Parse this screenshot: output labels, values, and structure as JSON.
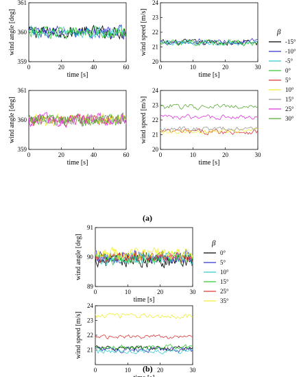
{
  "figure": {
    "label_a": "(a)",
    "label_b": "(b)"
  },
  "legend_a": {
    "title": "β",
    "entries": [
      "-15°",
      "-10°",
      "-5°",
      "0°",
      "5°",
      "10°",
      "15°",
      "25°",
      "30°"
    ],
    "colors": [
      "#000000",
      "#3333cc",
      "#33cccc",
      "#33cc33",
      "#dd3333",
      "#eeee33",
      "#999999",
      "#dd33dd",
      "#55aa33"
    ]
  },
  "legend_b": {
    "title": "β",
    "entries": [
      "0°",
      "5°",
      "10°",
      "15°",
      "25°",
      "35°"
    ],
    "colors": [
      "#000000",
      "#3333cc",
      "#33cccc",
      "#33cc33",
      "#dd3333",
      "#eeee33"
    ]
  },
  "chart_data": [
    {
      "type": "line",
      "panel": "a-top-left",
      "xlabel": "time [s]",
      "ylabel": "wind angle [deg]",
      "xlim": [
        0,
        60
      ],
      "ylim": [
        359,
        361
      ],
      "xticks": [
        0,
        20,
        40,
        60
      ],
      "yticks": [
        359,
        360,
        361
      ],
      "series": [
        {
          "name": "-15°",
          "center": 360.0,
          "amp": 0.28
        },
        {
          "name": "-10°",
          "center": 360.0,
          "amp": 0.28
        },
        {
          "name": "-5°",
          "center": 360.0,
          "amp": 0.25
        },
        {
          "name": "0°",
          "center": 360.0,
          "amp": 0.25
        }
      ]
    },
    {
      "type": "line",
      "panel": "a-top-right",
      "xlabel": "time [s]",
      "ylabel": "wind speed [m/s]",
      "xlim": [
        0,
        30
      ],
      "ylim": [
        20,
        24
      ],
      "xticks": [
        0,
        10,
        20,
        30
      ],
      "yticks": [
        20,
        21,
        22,
        23,
        24
      ],
      "series": [
        {
          "name": "-15°",
          "center": 21.3,
          "amp": 0.28
        },
        {
          "name": "-10°",
          "center": 21.35,
          "amp": 0.28
        },
        {
          "name": "-5°",
          "center": 21.3,
          "amp": 0.28
        },
        {
          "name": "0°",
          "center": 21.25,
          "amp": 0.28
        }
      ]
    },
    {
      "type": "line",
      "panel": "a-bottom-left",
      "xlabel": "time [s]",
      "ylabel": "wind angle [deg]",
      "xlim": [
        0,
        60
      ],
      "ylim": [
        359,
        361
      ],
      "xticks": [
        0,
        20,
        40,
        60
      ],
      "yticks": [
        359,
        360,
        361
      ],
      "series": [
        {
          "name": "5°",
          "center": 360.0,
          "amp": 0.28
        },
        {
          "name": "10°",
          "center": 360.0,
          "amp": 0.25
        },
        {
          "name": "15°",
          "center": 360.0,
          "amp": 0.25
        },
        {
          "name": "25°",
          "center": 360.0,
          "amp": 0.28
        },
        {
          "name": "30°",
          "center": 360.0,
          "amp": 0.28
        }
      ]
    },
    {
      "type": "line",
      "panel": "a-bottom-right",
      "xlabel": "time [s]",
      "ylabel": "wind speed [m/s]",
      "xlim": [
        0,
        30
      ],
      "ylim": [
        20,
        24
      ],
      "xticks": [
        0,
        10,
        20,
        30
      ],
      "yticks": [
        20,
        21,
        22,
        23,
        24
      ],
      "series": [
        {
          "name": "5°",
          "center": 21.2,
          "amp": 0.25
        },
        {
          "name": "10°",
          "center": 21.25,
          "amp": 0.22
        },
        {
          "name": "15°",
          "center": 21.4,
          "amp": 0.22
        },
        {
          "name": "25°",
          "center": 22.2,
          "amp": 0.22
        },
        {
          "name": "30°",
          "center": 22.9,
          "amp": 0.25
        }
      ]
    },
    {
      "type": "line",
      "panel": "b-top",
      "xlabel": "time [s]",
      "ylabel": "wind angle [deg]",
      "xlim": [
        0,
        30
      ],
      "ylim": [
        89,
        91
      ],
      "xticks": [
        0,
        10,
        20,
        30
      ],
      "yticks": [
        89,
        90,
        91
      ],
      "series": [
        {
          "name": "0°",
          "center": 89.9,
          "amp": 0.3
        },
        {
          "name": "5°",
          "center": 90.0,
          "amp": 0.3
        },
        {
          "name": "10°",
          "center": 89.95,
          "amp": 0.28
        },
        {
          "name": "15°",
          "center": 89.95,
          "amp": 0.25
        },
        {
          "name": "25°",
          "center": 90.0,
          "amp": 0.25
        },
        {
          "name": "35°",
          "center": 90.1,
          "amp": 0.28
        }
      ]
    },
    {
      "type": "line",
      "panel": "b-bottom",
      "xlabel": "time [s]",
      "ylabel": "wind speed [m/s]",
      "xlim": [
        0,
        30
      ],
      "ylim": [
        20,
        24
      ],
      "xticks": [
        0,
        10,
        20,
        30
      ],
      "yticks": [
        21,
        22,
        23,
        24
      ],
      "series": [
        {
          "name": "0°",
          "center": 21.1,
          "amp": 0.25
        },
        {
          "name": "5°",
          "center": 21.0,
          "amp": 0.25
        },
        {
          "name": "10°",
          "center": 20.9,
          "amp": 0.25
        },
        {
          "name": "15°",
          "center": 21.2,
          "amp": 0.22
        },
        {
          "name": "25°",
          "center": 21.9,
          "amp": 0.2
        },
        {
          "name": "35°",
          "center": 23.3,
          "amp": 0.25
        }
      ]
    }
  ]
}
